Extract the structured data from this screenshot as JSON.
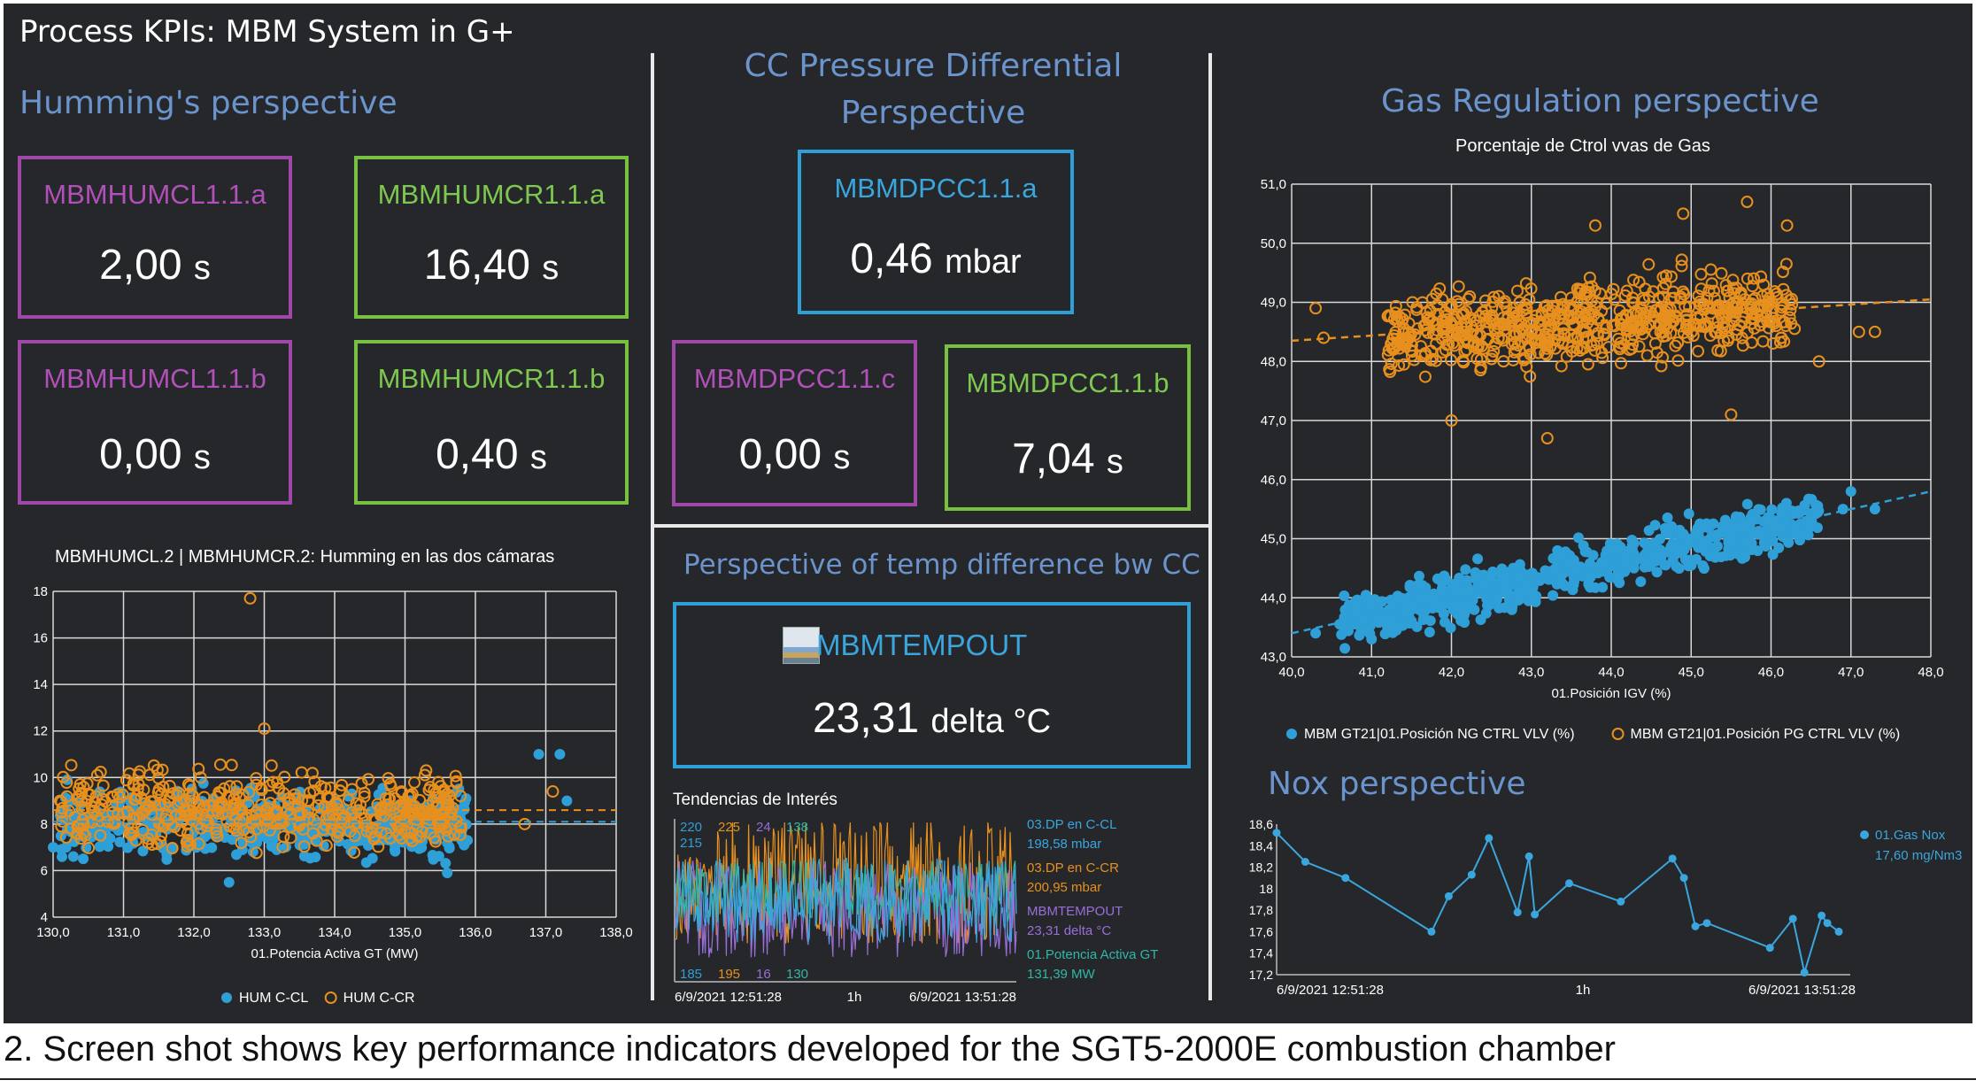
{
  "title": "Process KPIs: MBM System in G+",
  "sections": {
    "humming": "Humming's perspective",
    "cc_pressure": "CC Pressure Differential Perspective",
    "gas_regulation": "Gas Regulation perspective",
    "temp_diff": "Perspective of temp difference bw CC",
    "nox": "Nox perspective"
  },
  "kpis": {
    "humcl_a": {
      "label": "MBMHUMCL1.1.a",
      "number": "2,00",
      "unit": "s"
    },
    "humcr_a": {
      "label": "MBMHUMCR1.1.a",
      "number": "16,40",
      "unit": "s"
    },
    "humcl_b": {
      "label": "MBMHUMCL1.1.b",
      "number": "0,00",
      "unit": "s"
    },
    "humcr_b": {
      "label": "MBMHUMCR1.1.b",
      "number": "0,40",
      "unit": "s"
    },
    "dpcc_a": {
      "label": "MBMDPCC1.1.a",
      "number": "0,46",
      "unit": "mbar"
    },
    "dpcc_c": {
      "label": "MBMDPCC1.1.c",
      "number": "0,00",
      "unit": "s"
    },
    "dpcc_b": {
      "label": "MBMDPCC1.1.b",
      "number": "7,04",
      "unit": "s"
    },
    "tempout": {
      "label": "MBMTEMPOUT",
      "number": "23,31",
      "unit": "delta °C",
      "icon": "chart-thumbnail-icon"
    }
  },
  "colors": {
    "purple": "#a048a8",
    "green": "#78c040",
    "blue": "#2f9fd8",
    "orange": "#e8901e",
    "scatter_blue": "#2f9fd8",
    "section": "#6b93cc"
  },
  "caption": "2. Screen shot shows key performance indicators developed for the SGT5-2000E combustion chamber",
  "chart_data": [
    {
      "id": "humming",
      "type": "scatter",
      "title": "MBMHUMCL.2 | MBMHUMCR.2: Humming en las dos cámaras",
      "xlabel": "01.Potencia Activa GT (MW)",
      "ylabel": "",
      "xlim": [
        130,
        138
      ],
      "ylim": [
        4,
        18
      ],
      "xticks": [
        "130,0",
        "131,0",
        "132,0",
        "133,0",
        "134,0",
        "135,0",
        "136,0",
        "137,0",
        "138,0"
      ],
      "yticks": [
        "4",
        "6",
        "8",
        "10",
        "12",
        "14",
        "16",
        "18"
      ],
      "grid": true,
      "legend_position": "bottom",
      "series": [
        {
          "name": "HUM C-CL",
          "marker": "filled",
          "color": "#2f9fd8",
          "cloud": {
            "x_range": [
              130.1,
              135.9
            ],
            "y_center": 8.0,
            "y_spread": 1.1,
            "n": 500
          },
          "points": [
            [
              137.2,
              11.0
            ],
            [
              136.9,
              11.0
            ],
            [
              130.2,
              9.9
            ],
            [
              132.5,
              5.5
            ],
            [
              135.6,
              5.9
            ],
            [
              137.3,
              9.0
            ],
            [
              130.0,
              7.0
            ]
          ]
        },
        {
          "name": "HUM C-CR",
          "marker": "hollow",
          "color": "#e8901e",
          "cloud": {
            "x_range": [
              130.1,
              135.8
            ],
            "y_center": 8.6,
            "y_spread": 1.3,
            "n": 500
          },
          "points": [
            [
              132.8,
              17.7
            ],
            [
              133.0,
              12.1
            ],
            [
              135.3,
              10.3
            ],
            [
              137.1,
              9.4
            ],
            [
              136.7,
              8.0
            ],
            [
              130.1,
              9.0
            ]
          ]
        }
      ],
      "trendlines": [
        {
          "color": "#e8901e",
          "y": 8.6
        },
        {
          "color": "#2f9fd8",
          "y": 8.1
        }
      ]
    },
    {
      "id": "gas",
      "type": "scatter",
      "title": "Porcentaje de Ctrol vvas de Gas",
      "xlabel": "01.Posición IGV (%)",
      "ylabel": "",
      "xlim": [
        40,
        48
      ],
      "ylim": [
        43,
        51
      ],
      "xticks": [
        "40,0",
        "41,0",
        "42,0",
        "43,0",
        "44,0",
        "45,0",
        "46,0",
        "47,0",
        "48,0"
      ],
      "yticks": [
        "43,0",
        "44,0",
        "45,0",
        "46,0",
        "47,0",
        "48,0",
        "49,0",
        "50,0",
        "51,0"
      ],
      "grid": true,
      "legend_position": "bottom",
      "series": [
        {
          "name": "MBM GT21|01.Posición NG CTRL VLV (%)",
          "marker": "filled",
          "color": "#2f9fd8",
          "trend": {
            "x0": 40.0,
            "y0": 43.4,
            "x1": 48.0,
            "y1": 45.8
          },
          "cloud": {
            "x_range": [
              40.6,
              46.6
            ],
            "y_spread": 0.32,
            "n": 700
          },
          "points": [
            [
              47.0,
              45.8
            ],
            [
              47.3,
              45.5
            ],
            [
              40.3,
              43.4
            ],
            [
              41.0,
              43.3
            ],
            [
              46.9,
              45.5
            ]
          ]
        },
        {
          "name": "MBM GT21|01.Posición PG CTRL VLV (%)",
          "marker": "hollow",
          "color": "#e8901e",
          "trend": {
            "x0": 40.0,
            "y0": 48.35,
            "x1": 48.0,
            "y1": 49.05
          },
          "cloud": {
            "x_range": [
              41.2,
              46.3
            ],
            "y_center": 48.6,
            "y_spread": 0.55,
            "n": 700
          },
          "points": [
            [
              45.7,
              50.7
            ],
            [
              46.2,
              50.3
            ],
            [
              44.9,
              50.5
            ],
            [
              43.8,
              50.3
            ],
            [
              47.1,
              48.5
            ],
            [
              46.6,
              48.0
            ],
            [
              40.3,
              48.9
            ],
            [
              42.0,
              47.0
            ],
            [
              43.2,
              46.7
            ],
            [
              45.5,
              47.1
            ],
            [
              47.3,
              48.5
            ],
            [
              40.4,
              48.4
            ]
          ]
        }
      ]
    },
    {
      "id": "trends",
      "type": "line",
      "title": "Tendencias de Interés",
      "x_start": "6/9/2021 12:51:28",
      "x_mid": "1h",
      "x_end": "6/9/2021 13:51:28",
      "top_ticks": [
        {
          "text": "220",
          "color": "#2f9fd8"
        },
        {
          "text": "225",
          "color": "#e8901e"
        },
        {
          "text": "24",
          "color": "#9a6ed8"
        },
        {
          "text": "138",
          "color": "#2fb8a8"
        }
      ],
      "bottom_ticks": [
        {
          "text": "185",
          "color": "#2f9fd8"
        },
        {
          "text": "195",
          "color": "#e8901e"
        },
        {
          "text": "16",
          "color": "#9a6ed8"
        },
        {
          "text": "130",
          "color": "#2fb8a8"
        }
      ],
      "left_tick_extra": "215",
      "series": [
        {
          "name": "03.DP en C-CL",
          "value": "198,58 mbar",
          "color": "#3aa6dd"
        },
        {
          "name": "03.DP en C-CR",
          "value": "200,95 mbar",
          "color": "#e8901e"
        },
        {
          "name": "MBMTEMPOUT",
          "value": "23,31 delta °C",
          "color": "#9a6ed8"
        },
        {
          "name": "01.Potencia Activa GT",
          "value": "131,39 MW",
          "color": "#2fb8a8"
        }
      ]
    },
    {
      "id": "nox",
      "type": "line",
      "title": "",
      "xlim_labels": [
        "6/9/2021 12:51:28",
        "1h",
        "6/9/2021 13:51:28"
      ],
      "ylim": [
        17.2,
        18.6
      ],
      "yticks": [
        "17,2",
        "17,4",
        "17,6",
        "17,8",
        "18",
        "18,2",
        "18,4",
        "18,6"
      ],
      "series": [
        {
          "name": "01.Gas Nox",
          "value": "17,60 mg/Nm3",
          "color": "#3aa6dd",
          "t": [
            0,
            0.05,
            0.12,
            0.27,
            0.3,
            0.34,
            0.37,
            0.42,
            0.44,
            0.45,
            0.51,
            0.6,
            0.69,
            0.71,
            0.73,
            0.75,
            0.86,
            0.9,
            0.92,
            0.95,
            0.96,
            0.98
          ],
          "values": [
            18.52,
            18.25,
            18.1,
            17.6,
            17.93,
            18.13,
            18.47,
            17.78,
            18.3,
            17.76,
            18.05,
            17.88,
            18.28,
            18.1,
            17.65,
            17.68,
            17.45,
            17.72,
            17.22,
            17.75,
            17.68,
            17.6
          ]
        }
      ]
    }
  ]
}
